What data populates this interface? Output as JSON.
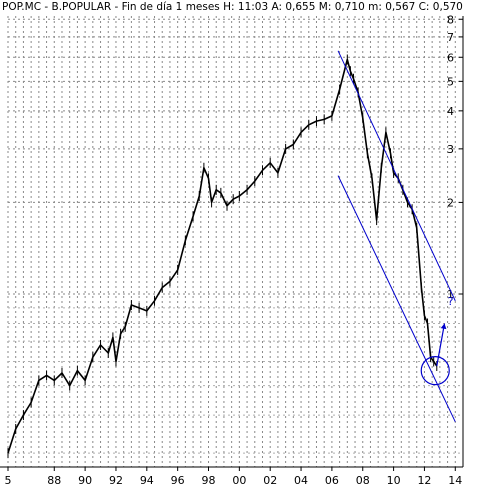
{
  "chart_data": {
    "type": "line",
    "title": "POP.MC - B.POPULAR - Fin de día 1 meses  H: 11:03  A: 0,655  M: 0,710  m: 0,567  C: 0,570",
    "xlabel": "",
    "ylabel": "",
    "y_scale": "log",
    "grid": true,
    "xlim": [
      1985,
      2014.5
    ],
    "ylim": [
      0.27,
      8.2
    ],
    "x_ticks": [
      {
        "value": 1985,
        "label": "5"
      },
      {
        "value": 1988,
        "label": "88"
      },
      {
        "value": 1990,
        "label": "90"
      },
      {
        "value": 1992,
        "label": "92"
      },
      {
        "value": 1994,
        "label": "94"
      },
      {
        "value": 1996,
        "label": "96"
      },
      {
        "value": 1998,
        "label": "98"
      },
      {
        "value": 2000,
        "label": "00"
      },
      {
        "value": 2002,
        "label": "02"
      },
      {
        "value": 2004,
        "label": "04"
      },
      {
        "value": 2006,
        "label": "06"
      },
      {
        "value": 2008,
        "label": "08"
      },
      {
        "value": 2010,
        "label": "10"
      },
      {
        "value": 2012,
        "label": "12"
      },
      {
        "value": 2014,
        "label": "14"
      }
    ],
    "y_ticks": [
      {
        "value": 8,
        "label": "8"
      },
      {
        "value": 7,
        "label": "7"
      },
      {
        "value": 6,
        "label": "6"
      },
      {
        "value": 5,
        "label": "5"
      },
      {
        "value": 4,
        "label": "4"
      },
      {
        "value": 3,
        "label": "3"
      },
      {
        "value": 2,
        "label": "2"
      },
      {
        "value": 1,
        "label": "1"
      }
    ],
    "series": [
      {
        "color": "#000000",
        "x": [
          1985.0,
          1985.5,
          1986.0,
          1986.5,
          1987.0,
          1987.5,
          1988.0,
          1988.5,
          1989.0,
          1989.5,
          1990.0,
          1990.5,
          1991.0,
          1991.5,
          1991.8,
          1992.0,
          1992.3,
          1992.6,
          1993.0,
          1993.5,
          1994.0,
          1994.5,
          1995.0,
          1995.5,
          1996.0,
          1996.5,
          1997.0,
          1997.4,
          1997.7,
          1998.0,
          1998.2,
          1998.5,
          1998.8,
          1999.2,
          1999.6,
          2000.0,
          2000.5,
          2001.0,
          2001.5,
          2002.0,
          2002.5,
          2003.0,
          2003.5,
          2004.0,
          2004.5,
          2005.0,
          2005.5,
          2006.0,
          2006.5,
          2007.0,
          2007.2,
          2007.4,
          2007.7,
          2008.0,
          2008.3,
          2008.6,
          2008.9,
          2009.2,
          2009.5,
          2009.8,
          2010.0,
          2010.3,
          2010.6,
          2010.9,
          2011.2,
          2011.5,
          2011.8,
          2012.0,
          2012.2,
          2012.4,
          2012.6,
          2012.8
        ],
        "values": [
          0.3,
          0.36,
          0.4,
          0.44,
          0.52,
          0.54,
          0.52,
          0.55,
          0.5,
          0.56,
          0.52,
          0.62,
          0.68,
          0.64,
          0.72,
          0.6,
          0.74,
          0.78,
          0.92,
          0.9,
          0.88,
          0.95,
          1.05,
          1.1,
          1.2,
          1.5,
          1.8,
          2.1,
          2.6,
          2.4,
          2.0,
          2.2,
          2.15,
          1.95,
          2.05,
          2.1,
          2.2,
          2.35,
          2.55,
          2.7,
          2.5,
          3.0,
          3.1,
          3.4,
          3.6,
          3.7,
          3.75,
          3.85,
          4.7,
          5.9,
          5.4,
          5.1,
          4.6,
          3.8,
          2.9,
          2.4,
          1.75,
          2.6,
          3.4,
          2.9,
          2.5,
          2.4,
          2.2,
          2.0,
          1.9,
          1.65,
          1.05,
          0.85,
          0.8,
          0.62,
          0.6,
          0.58
        ]
      }
    ],
    "annotations": [
      {
        "kind": "trend-line",
        "color": "#0000cc",
        "from": [
          2006.4,
          6.3
        ],
        "to": [
          2014.0,
          0.95
        ]
      },
      {
        "kind": "trend-line",
        "color": "#0000cc",
        "from": [
          2006.4,
          2.45
        ],
        "to": [
          2014.0,
          0.38
        ]
      },
      {
        "kind": "circle",
        "color": "#0000cc",
        "center": [
          2012.7,
          0.56
        ]
      },
      {
        "kind": "arrow",
        "color": "#0000cc",
        "from": [
          2012.8,
          0.58
        ],
        "to": [
          2013.3,
          0.8
        ]
      },
      {
        "kind": "text",
        "color": "#0000cc",
        "text": "?",
        "at": [
          2013.5,
          0.92
        ]
      }
    ]
  }
}
